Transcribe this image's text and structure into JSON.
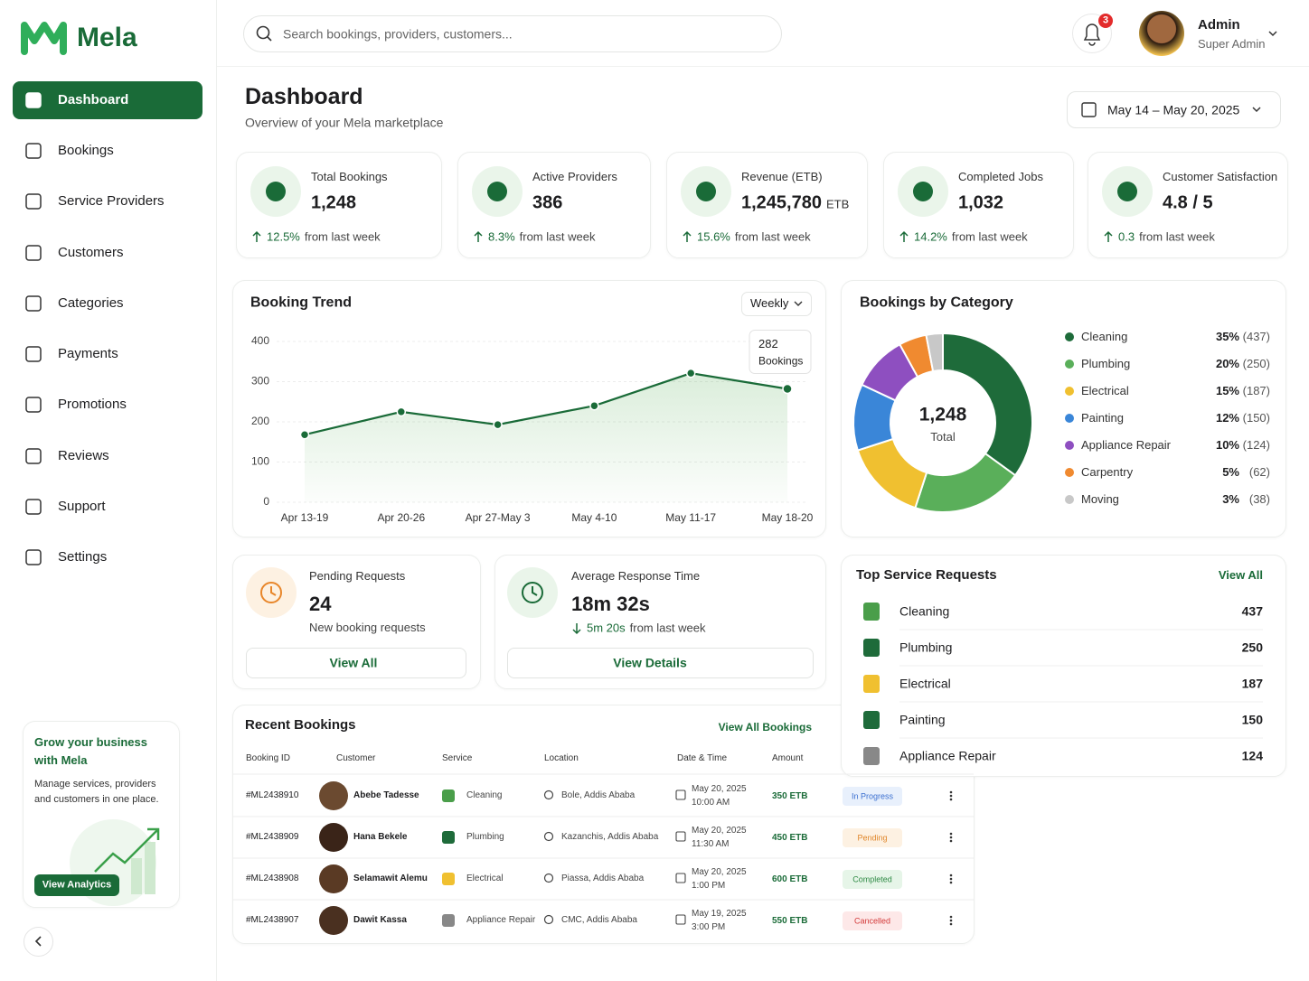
{
  "brand": "Mela",
  "nav": [
    "Dashboard",
    "Bookings",
    "Service Providers",
    "Customers",
    "Categories",
    "Payments",
    "Promotions",
    "Reviews",
    "Support",
    "Settings"
  ],
  "search_placeholder": "Search bookings, providers, customers...",
  "notifications": "3",
  "user": {
    "name": "Admin",
    "role": "Super Admin"
  },
  "header": {
    "title": "Dashboard",
    "subtitle": "Overview of your Mela marketplace",
    "date_range": "May 14 – May 20, 2025"
  },
  "stats": [
    {
      "label": "Total Bookings",
      "value": "1,248",
      "change": "12.5%",
      "suffix": "from last week"
    },
    {
      "label": "Active Providers",
      "value": "386",
      "change": "8.3%",
      "suffix": "from last week"
    },
    {
      "label": "Revenue (ETB)",
      "value": "1,245,780",
      "unit": "ETB",
      "change": "15.6%",
      "suffix": "from last week"
    },
    {
      "label": "Completed Jobs",
      "value": "1,032",
      "change": "14.2%",
      "suffix": "from last week"
    },
    {
      "label": "Customer Satisfaction",
      "value": "4.8 / 5",
      "change": "0.3",
      "suffix": "from last week"
    }
  ],
  "chart_data": [
    {
      "type": "line",
      "title": "Booking Trend",
      "period": "Weekly",
      "categories": [
        "Apr 13-19",
        "Apr 20-26",
        "Apr 27-May 3",
        "May 4-10",
        "May 11-17",
        "May 18-20"
      ],
      "values": [
        168,
        225,
        193,
        240,
        321,
        282
      ],
      "color": "#1a6b38",
      "ylim": [
        0,
        400
      ],
      "yticks": [
        0,
        100,
        200,
        300,
        400
      ],
      "grid": true,
      "tooltip_label": "Bookings"
    },
    {
      "type": "pie",
      "title": "Bookings by Category",
      "total": "1,248",
      "total_label": "Total",
      "categories": [
        "Cleaning",
        "Plumbing",
        "Electrical",
        "Painting",
        "Appliance Repair",
        "Carpentry",
        "Moving"
      ],
      "values": [
        35,
        20,
        15,
        12,
        10,
        5,
        3
      ],
      "value_labels": [
        "35%",
        "20%",
        "15%",
        "12%",
        "10%",
        "5%",
        "3%"
      ],
      "counts": [
        "(437)",
        "(250)",
        "(187)",
        "(150)",
        "(124)",
        "(62)",
        "(38)"
      ],
      "colors": [
        "#1e6b3a",
        "#5aaf5a",
        "#f0c030",
        "#3a86d8",
        "#8e4fc0",
        "#f08a30",
        "#c8c8c8"
      ]
    }
  ],
  "pending": {
    "label": "Pending Requests",
    "value": "24",
    "note": "New booking requests",
    "action": "View All"
  },
  "response": {
    "label": "Average Response Time",
    "value": "18m 32s",
    "change": "5m 20s",
    "suffix": "from last week",
    "action": "View Details"
  },
  "top_requests": {
    "title": "Top Service Requests",
    "action": "View All",
    "items": [
      {
        "name": "Cleaning",
        "count": "437"
      },
      {
        "name": "Plumbing",
        "count": "250"
      },
      {
        "name": "Electrical",
        "count": "187"
      },
      {
        "name": "Painting",
        "count": "150"
      },
      {
        "name": "Appliance Repair",
        "count": "124"
      }
    ]
  },
  "recent": {
    "title": "Recent Bookings",
    "action": "View All Bookings",
    "columns": [
      "Booking ID",
      "Customer",
      "Service",
      "Location",
      "Date & Time",
      "Amount"
    ],
    "rows": [
      {
        "id": "#ML2438910",
        "customer": "Abebe Tadesse",
        "service": "Cleaning",
        "location": "Bole, Addis Ababa",
        "date": "May 20, 2025",
        "time": "10:00 AM",
        "amount": "350 ETB",
        "status": "In Progress"
      },
      {
        "id": "#ML2438909",
        "customer": "Hana Bekele",
        "service": "Plumbing",
        "location": "Kazanchis, Addis Ababa",
        "date": "May 20, 2025",
        "time": "11:30 AM",
        "amount": "450 ETB",
        "status": "Pending"
      },
      {
        "id": "#ML2438908",
        "customer": "Selamawit Alemu",
        "service": "Electrical",
        "location": "Piassa, Addis Ababa",
        "date": "May 20, 2025",
        "time": "1:00 PM",
        "amount": "600 ETB",
        "status": "Completed"
      },
      {
        "id": "#ML2438907",
        "customer": "Dawit Kassa",
        "service": "Appliance Repair",
        "location": "CMC, Addis Ababa",
        "date": "May 19, 2025",
        "time": "3:00 PM",
        "amount": "550 ETB",
        "status": "Cancelled"
      }
    ]
  },
  "promo": {
    "title": "Grow your business with Mela",
    "text": "Manage services, providers and customers in one place.",
    "action": "View Analytics"
  }
}
